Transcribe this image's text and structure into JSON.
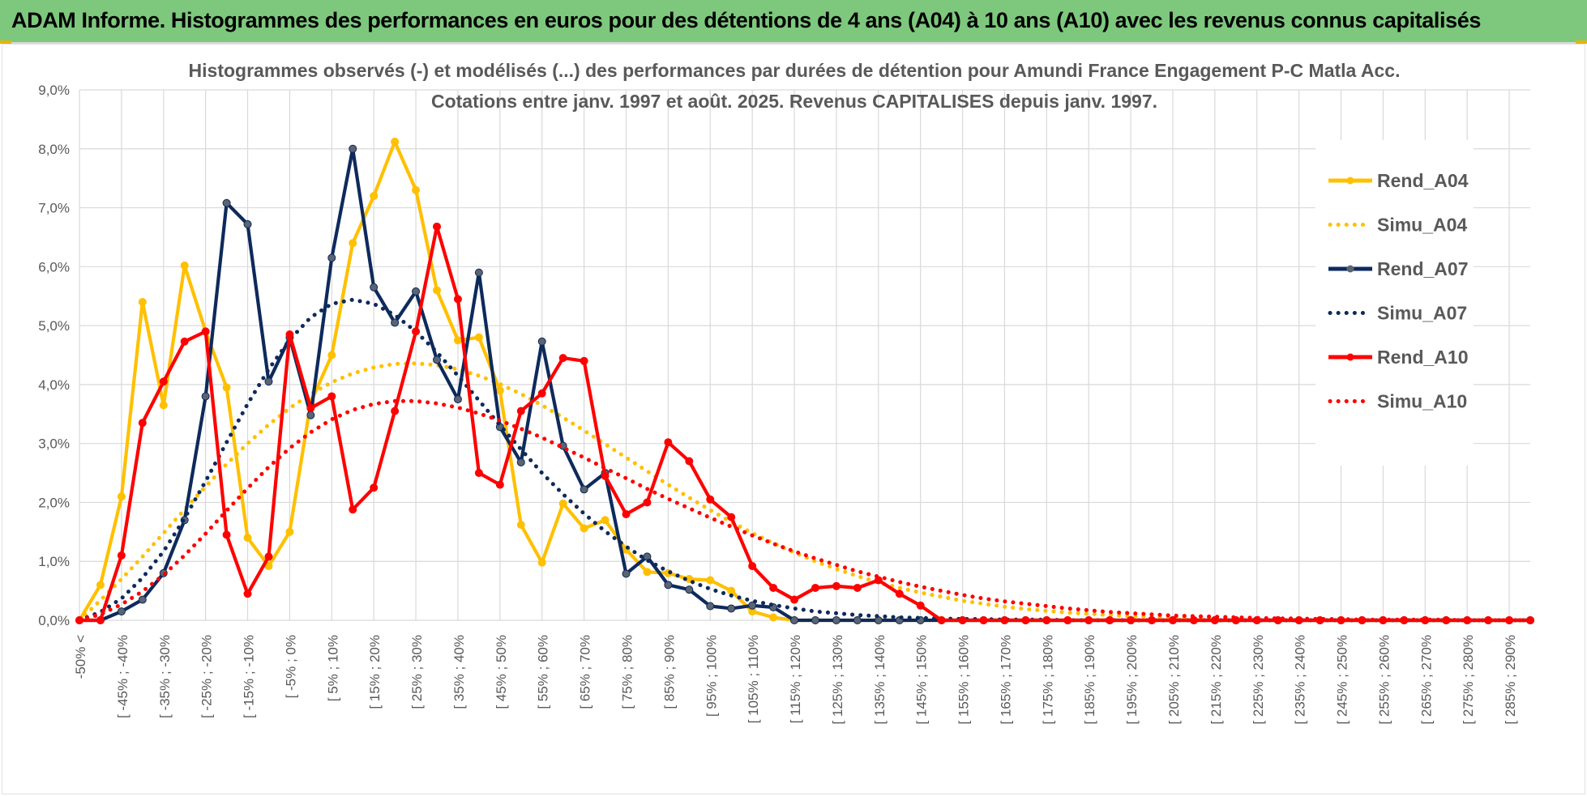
{
  "header": {
    "title": "ADAM Informe. Histogrammes des performances en euros pour des détentions de 4 ans (A04) à 10 ans (A10) avec les revenus connus capitalisés"
  },
  "colors": {
    "header_bg": "#7dc87d",
    "A04": "#ffc000",
    "A07": "#0e2a5c",
    "A10": "#ff0000",
    "grid": "#d9d9d9"
  },
  "chart_data": {
    "type": "line",
    "title": "Histogrammes observés (-) et modélisés (...) des performances par durées de détention pour Amundi France Engagement P-C Matla Acc.",
    "subtitle": "Cotations entre janv. 1997 et août. 2025. Revenus CAPITALISES depuis janv. 1997.",
    "xlabel": "",
    "ylabel": "",
    "ylim": [
      0,
      9
    ],
    "y_ticks": [
      "0,0%",
      "1,0%",
      "2,0%",
      "3,0%",
      "4,0%",
      "5,0%",
      "6,0%",
      "7,0%",
      "8,0%",
      "9,0%"
    ],
    "grid": true,
    "legend_position": "top-right",
    "x_labels": [
      "-50% <",
      "[ -45% ; -40%",
      "[ -35% ; -30%",
      "[ -25% ; -20%",
      "[ -15% ; -10%",
      "[ -5% ; 0%",
      "[ 5% ; 10%",
      "[ 15% ; 20%",
      "[ 25% ; 30%",
      "[ 35% ; 40%",
      "[ 45% ; 50%",
      "[ 55% ; 60%",
      "[ 65% ; 70%",
      "[ 75% ; 80%",
      "[ 85% ; 90%",
      "[ 95% ; 100%",
      "[ 105% ; 110%",
      "[ 115% ; 120%",
      "[ 125% ; 130%",
      "[ 135% ; 140%",
      "[ 145% ; 150%",
      "[ 155% ; 160%",
      "[ 165% ; 170%",
      "[ 175% ; 180%",
      "[ 185% ; 190%",
      "[ 195% ; 200%",
      "[ 205% ; 210%",
      "[ 215% ; 220%",
      "[ 225% ; 230%",
      "[ 235% ; 240%",
      "[ 245% ; 250%",
      "[ 255% ; 260%",
      "[ 265% ; 270%",
      "[ 275% ; 280%",
      "[ 285% ; 290%"
    ],
    "series": [
      {
        "name": "Rend_A04",
        "style": "solid",
        "color": "#ffc000",
        "values": [
          0,
          0.6,
          2.1,
          5.4,
          3.65,
          6.02,
          4.9,
          3.95,
          1.4,
          0.92,
          1.5,
          3.7,
          4.5,
          6.4,
          7.2,
          8.12,
          7.3,
          5.6,
          4.75,
          4.8,
          3.9,
          1.62,
          0.98,
          1.98,
          1.56,
          1.7,
          1.2,
          0.82,
          0.8,
          0.7,
          0.68,
          0.5,
          0.15,
          0.05,
          0,
          0,
          0,
          0,
          0,
          0,
          0,
          0,
          0,
          0,
          0,
          0,
          0,
          0,
          0,
          0,
          0,
          0,
          0,
          0,
          0,
          0,
          0,
          0,
          0,
          0,
          0,
          0,
          0,
          0,
          0,
          0,
          0,
          0,
          0,
          0
        ]
      },
      {
        "name": "Simu_A04",
        "style": "dotted",
        "color": "#ffc000",
        "values": [
          0,
          0.34,
          0.7,
          1.08,
          1.48,
          1.88,
          2.27,
          2.65,
          3.0,
          3.32,
          3.6,
          3.84,
          4.04,
          4.19,
          4.29,
          4.35,
          4.36,
          4.33,
          4.26,
          4.15,
          4.01,
          3.84,
          3.65,
          3.44,
          3.22,
          2.99,
          2.76,
          2.53,
          2.3,
          2.08,
          1.87,
          1.67,
          1.48,
          1.31,
          1.15,
          1.0,
          0.87,
          0.75,
          0.64,
          0.55,
          0.47,
          0.4,
          0.33,
          0.28,
          0.23,
          0.19,
          0.16,
          0.13,
          0.11,
          0.09,
          0.07,
          0.06,
          0.05,
          0.04,
          0.03,
          0.03,
          0.02,
          0.02,
          0.01,
          0.01,
          0.01,
          0.01,
          0,
          0,
          0,
          0,
          0,
          0,
          0,
          0
        ]
      },
      {
        "name": "Rend_A07",
        "style": "solid",
        "color": "#0e2a5c",
        "values": [
          0,
          0,
          0.15,
          0.35,
          0.8,
          1.7,
          3.8,
          7.08,
          6.72,
          4.05,
          4.8,
          3.48,
          6.15,
          8.0,
          5.65,
          5.05,
          5.58,
          4.42,
          3.75,
          5.9,
          3.28,
          2.68,
          4.73,
          2.96,
          2.22,
          2.5,
          0.79,
          1.08,
          0.6,
          0.52,
          0.24,
          0.2,
          0.25,
          0.22,
          0,
          0,
          0,
          0,
          0,
          0,
          0,
          0,
          0,
          0,
          0,
          0,
          0,
          0,
          0,
          0,
          0,
          0,
          0,
          0,
          0,
          0,
          0,
          0,
          0,
          0,
          0,
          0,
          0,
          0,
          0,
          0,
          0,
          0,
          0,
          0
        ]
      },
      {
        "name": "Simu_A07",
        "style": "dotted",
        "color": "#0e2a5c",
        "values": [
          0,
          0.14,
          0.37,
          0.72,
          1.17,
          1.73,
          2.36,
          3.02,
          3.67,
          4.26,
          4.76,
          5.14,
          5.37,
          5.44,
          5.37,
          5.18,
          4.9,
          4.55,
          4.15,
          3.73,
          3.31,
          2.9,
          2.5,
          2.14,
          1.81,
          1.51,
          1.25,
          1.02,
          0.83,
          0.67,
          0.53,
          0.42,
          0.33,
          0.26,
          0.2,
          0.15,
          0.12,
          0.09,
          0.07,
          0.05,
          0.04,
          0.03,
          0.02,
          0.02,
          0.01,
          0.01,
          0.01,
          0,
          0,
          0,
          0,
          0,
          0,
          0,
          0,
          0,
          0,
          0,
          0,
          0,
          0,
          0,
          0,
          0,
          0,
          0,
          0,
          0,
          0,
          0
        ]
      },
      {
        "name": "Rend_A10",
        "style": "solid",
        "color": "#ff0000",
        "values": [
          0,
          0,
          1.1,
          3.35,
          4.05,
          4.73,
          4.9,
          1.45,
          0.45,
          1.08,
          4.85,
          3.6,
          3.8,
          1.88,
          2.25,
          3.55,
          4.9,
          6.68,
          5.45,
          2.5,
          2.3,
          3.55,
          3.85,
          4.45,
          4.4,
          2.45,
          1.8,
          2.0,
          3.02,
          2.7,
          2.05,
          1.75,
          0.92,
          0.55,
          0.35,
          0.55,
          0.58,
          0.55,
          0.68,
          0.45,
          0.25,
          0,
          0,
          0,
          0,
          0,
          0,
          0,
          0,
          0,
          0,
          0,
          0,
          0,
          0,
          0,
          0,
          0,
          0,
          0,
          0,
          0,
          0,
          0,
          0,
          0,
          0,
          0,
          0,
          0
        ]
      },
      {
        "name": "Simu_A10",
        "style": "dotted",
        "color": "#ff0000",
        "values": [
          0,
          0.1,
          0.27,
          0.49,
          0.77,
          1.1,
          1.47,
          1.86,
          2.24,
          2.6,
          2.92,
          3.19,
          3.41,
          3.57,
          3.67,
          3.72,
          3.72,
          3.68,
          3.61,
          3.51,
          3.39,
          3.25,
          3.1,
          2.93,
          2.76,
          2.58,
          2.41,
          2.23,
          2.06,
          1.9,
          1.74,
          1.59,
          1.44,
          1.3,
          1.17,
          1.05,
          0.94,
          0.83,
          0.74,
          0.65,
          0.57,
          0.5,
          0.43,
          0.37,
          0.32,
          0.28,
          0.24,
          0.2,
          0.17,
          0.14,
          0.12,
          0.1,
          0.08,
          0.07,
          0.06,
          0.05,
          0.04,
          0.03,
          0.03,
          0.02,
          0.02,
          0.01,
          0.01,
          0.01,
          0.01,
          0.01,
          0,
          0,
          0,
          0
        ]
      }
    ]
  }
}
